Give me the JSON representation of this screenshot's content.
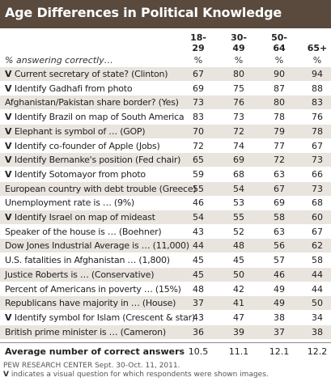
{
  "chart_data": {
    "type": "table",
    "title": "Age Differences in Political Knowledge",
    "columns": [
      "18-\n29",
      "30-\n49",
      "50-\n64",
      "65+"
    ],
    "subheader": "% answering correctly…",
    "unit_row": [
      "%",
      "%",
      "%",
      "%"
    ],
    "rows": [
      {
        "visual": true,
        "label": "Current secretary of state? (Clinton)",
        "values": [
          67,
          80,
          90,
          94
        ]
      },
      {
        "visual": true,
        "label": "Identify Gadhafi from photo",
        "values": [
          69,
          75,
          87,
          88
        ]
      },
      {
        "visual": false,
        "label": "Afghanistan/Pakistan share border? (Yes)",
        "values": [
          73,
          76,
          80,
          83
        ]
      },
      {
        "visual": true,
        "label": "Identify Brazil on map of South America",
        "values": [
          83,
          73,
          78,
          76
        ]
      },
      {
        "visual": true,
        "label": "Elephant is symbol of … (GOP)",
        "values": [
          70,
          72,
          79,
          78
        ]
      },
      {
        "visual": true,
        "label": "Identify co-founder of Apple (Jobs)",
        "values": [
          72,
          74,
          77,
          67
        ]
      },
      {
        "visual": true,
        "label": "Identify Bernanke's position (Fed chair)",
        "values": [
          65,
          69,
          72,
          73
        ]
      },
      {
        "visual": true,
        "label": "Identify Sotomayor from photo",
        "values": [
          59,
          68,
          63,
          66
        ]
      },
      {
        "visual": false,
        "label": "European country with debt trouble (Greece)",
        "values": [
          55,
          54,
          67,
          73
        ]
      },
      {
        "visual": false,
        "label": "Unemployment rate is … (9%)",
        "values": [
          46,
          53,
          69,
          68
        ]
      },
      {
        "visual": true,
        "label": "Identify Israel on map of mideast",
        "values": [
          54,
          55,
          58,
          60
        ]
      },
      {
        "visual": false,
        "label": "Speaker of the house is … (Boehner)",
        "values": [
          43,
          52,
          63,
          67
        ]
      },
      {
        "visual": false,
        "label": "Dow Jones Industrial Average is … (11,000)",
        "values": [
          44,
          48,
          56,
          62
        ]
      },
      {
        "visual": false,
        "label": "U.S. fatalities in Afghanistan … (1,800)",
        "values": [
          45,
          45,
          57,
          58
        ]
      },
      {
        "visual": false,
        "label": "Justice Roberts is … (Conservative)",
        "values": [
          45,
          50,
          46,
          44
        ]
      },
      {
        "visual": false,
        "label": "Percent of Americans in poverty … (15%)",
        "values": [
          48,
          42,
          49,
          44
        ]
      },
      {
        "visual": false,
        "label": "Republicans have majority in … (House)",
        "values": [
          37,
          41,
          49,
          50
        ]
      },
      {
        "visual": true,
        "label": "Identify symbol for Islam (Crescent & star)",
        "values": [
          43,
          47,
          38,
          34
        ]
      },
      {
        "visual": false,
        "label": "British prime minister is … (Cameron)",
        "values": [
          36,
          39,
          37,
          38
        ]
      }
    ],
    "visual_marker": "V",
    "average": {
      "label": "Average number of correct answers",
      "values": [
        "10.5",
        "11.1",
        "12.1",
        "12.2"
      ]
    },
    "footnote_source": "PEW RESEARCH CENTER Sept. 30-Oct. 11, 2011.",
    "footnote_marker": "V",
    "footnote_text": "indicates a visual question for which respondents were shown images.",
    "colors": {
      "title_bar": "#5a4a3e",
      "shade": "#e9e4de"
    }
  }
}
